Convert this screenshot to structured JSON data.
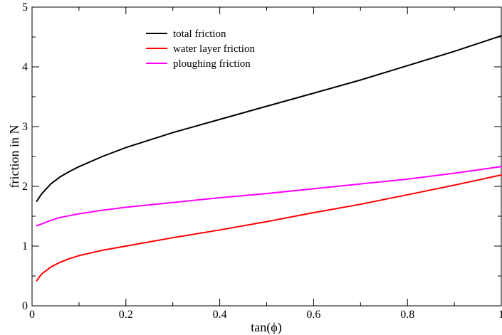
{
  "chart_data": {
    "type": "line",
    "title": "",
    "xlabel": "tan(ϕ)",
    "ylabel": "friction in N",
    "xlim": [
      0,
      1
    ],
    "ylim": [
      0,
      5
    ],
    "xticks": [
      0,
      0.2,
      0.4,
      0.6,
      0.8,
      1
    ],
    "xtick_labels": [
      "0",
      "0.2",
      "0.4",
      "0.6",
      "0.8",
      "1"
    ],
    "yticks": [
      0,
      1,
      2,
      3,
      4,
      5
    ],
    "ytick_labels": [
      "0",
      "1",
      "2",
      "3",
      "4",
      "5"
    ],
    "grid": false,
    "legend_position": "top-left",
    "series": [
      {
        "name": "total friction",
        "color": "#000000",
        "x": [
          0.01,
          0.02,
          0.04,
          0.06,
          0.08,
          0.1,
          0.15,
          0.2,
          0.3,
          0.4,
          0.5,
          0.6,
          0.7,
          0.8,
          0.9,
          1.0
        ],
        "y": [
          1.75,
          1.87,
          2.04,
          2.16,
          2.25,
          2.33,
          2.5,
          2.65,
          2.9,
          3.12,
          3.34,
          3.56,
          3.78,
          4.02,
          4.26,
          4.52
        ]
      },
      {
        "name": "water layer friction",
        "color": "#ff0000",
        "x": [
          0.01,
          0.02,
          0.04,
          0.06,
          0.08,
          0.1,
          0.15,
          0.2,
          0.3,
          0.4,
          0.5,
          0.6,
          0.7,
          0.8,
          0.9,
          1.0
        ],
        "y": [
          0.42,
          0.53,
          0.65,
          0.73,
          0.79,
          0.84,
          0.93,
          1.0,
          1.14,
          1.27,
          1.41,
          1.56,
          1.7,
          1.86,
          2.02,
          2.19
        ]
      },
      {
        "name": "ploughing friction",
        "color": "#ff00ff",
        "x": [
          0.01,
          0.02,
          0.04,
          0.06,
          0.08,
          0.1,
          0.15,
          0.2,
          0.3,
          0.4,
          0.5,
          0.6,
          0.7,
          0.8,
          0.9,
          1.0
        ],
        "y": [
          1.34,
          1.37,
          1.43,
          1.48,
          1.51,
          1.54,
          1.6,
          1.65,
          1.73,
          1.81,
          1.88,
          1.96,
          2.04,
          2.12,
          2.22,
          2.33
        ]
      }
    ]
  }
}
